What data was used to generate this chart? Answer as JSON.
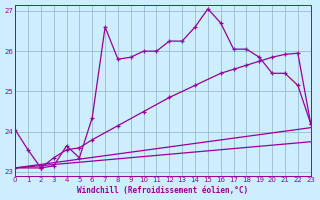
{
  "xlabel": "Windchill (Refroidissement éolien,°C)",
  "background_color": "#cceeff",
  "grid_color": "#99bbcc",
  "line_color": "#990099",
  "xlim": [
    0,
    23
  ],
  "ylim": [
    22.9,
    27.15
  ],
  "yticks": [
    23,
    24,
    25,
    26,
    27
  ],
  "xticks": [
    0,
    1,
    2,
    3,
    4,
    5,
    6,
    7,
    8,
    9,
    10,
    11,
    12,
    13,
    14,
    15,
    16,
    17,
    18,
    19,
    20,
    21,
    22,
    23
  ],
  "curve1_x": [
    0,
    1,
    2,
    3,
    4,
    5,
    6,
    7,
    8,
    9,
    10,
    11,
    12,
    13,
    14,
    15,
    16,
    17,
    18,
    19,
    20,
    21,
    22,
    23
  ],
  "curve1_y": [
    24.05,
    23.55,
    23.1,
    23.15,
    23.65,
    23.35,
    24.35,
    26.6,
    25.8,
    25.85,
    26.0,
    26.0,
    26.25,
    26.25,
    26.6,
    27.05,
    26.7,
    26.05,
    26.05,
    25.85,
    25.45,
    25.45,
    25.15,
    24.2
  ],
  "curve2_x": [
    0,
    2,
    3,
    4,
    5,
    6,
    8,
    10,
    12,
    14,
    16,
    17,
    18,
    19,
    20,
    21,
    22,
    23
  ],
  "curve2_y": [
    23.1,
    23.1,
    23.35,
    23.55,
    23.6,
    23.8,
    24.15,
    24.5,
    24.85,
    25.15,
    25.45,
    25.55,
    25.65,
    25.75,
    25.85,
    25.92,
    25.95,
    24.2
  ],
  "curve3_x": [
    0,
    23
  ],
  "curve3_y": [
    23.1,
    24.1
  ],
  "curve4_x": [
    0,
    23
  ],
  "curve4_y": [
    23.1,
    23.75
  ]
}
